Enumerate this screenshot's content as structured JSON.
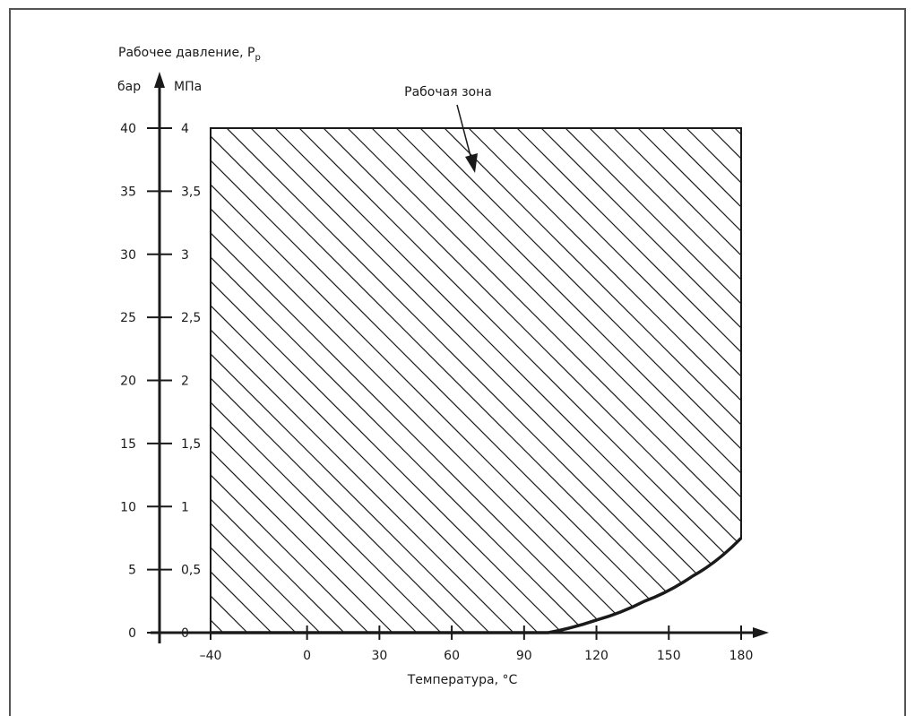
{
  "chart_data": {
    "type": "area",
    "ylabel": "Рабочее давление, P",
    "ylabel_subscript": "p",
    "y_units_left": "бар",
    "y_units_right": "МПа",
    "xlabel": "Температура, °C",
    "annotation": "Рабочая зона",
    "x_ticks": [
      "–40",
      "0",
      "30",
      "60",
      "90",
      "120",
      "150",
      "180"
    ],
    "x_tick_values": [
      -40,
      0,
      30,
      60,
      90,
      120,
      150,
      180
    ],
    "y_ticks_bar": [
      "0",
      "5",
      "10",
      "15",
      "20",
      "25",
      "30",
      "35",
      "40"
    ],
    "y_ticks_mpa": [
      "0",
      "0,5",
      "1",
      "1,5",
      "2",
      "2,5",
      "3",
      "3,5",
      "4"
    ],
    "y_tick_values": [
      0,
      5,
      10,
      15,
      20,
      25,
      30,
      35,
      40
    ],
    "xlim": [
      -40,
      180
    ],
    "ylim": [
      0,
      40
    ],
    "region": {
      "name": "Рабочая зона",
      "top": 40,
      "x_range": [
        -40,
        180
      ],
      "lower_boundary": [
        {
          "x": -40,
          "y": 0
        },
        {
          "x": 100,
          "y": 0
        },
        {
          "x": 120,
          "y": 1
        },
        {
          "x": 140,
          "y": 2.5
        },
        {
          "x": 160,
          "y": 4.5
        },
        {
          "x": 180,
          "y": 7.5
        }
      ]
    },
    "fill": "diagonal-hatch",
    "grid": false,
    "colors": {
      "line": "#1a1a1a",
      "background": "#ffffff"
    }
  }
}
